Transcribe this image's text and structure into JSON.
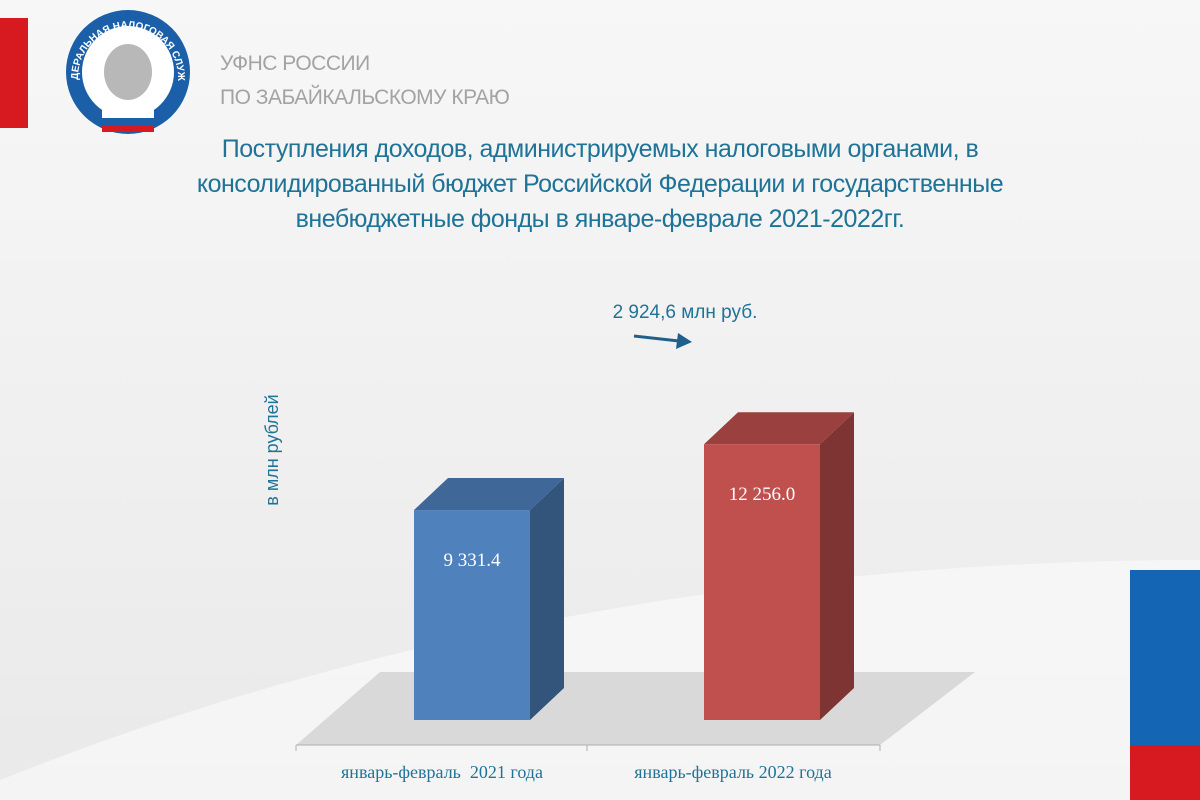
{
  "header": {
    "org_line1": "УФНС РОССИИ",
    "org_line2": "ПО ЗАБАЙКАЛЬСКОМУ КРАЮ",
    "logo_text": "ФЕДЕРАЛЬНАЯ НАЛОГОВАЯ СЛУЖБА"
  },
  "chart_data": {
    "type": "bar3d",
    "title": "Поступления доходов, администрируемых налоговыми органами, в консолидированный бюджет Российской Федерации и государственные внебюджетные фонды  в январе-феврале 2021-2022гг.",
    "annotation": "2 924,6 млн руб.",
    "y_label": "в млн рублей",
    "categories": [
      "январь-февраль  2021 года",
      "январь-февраль 2022 года"
    ],
    "values": [
      9331.4,
      12256.0
    ],
    "value_labels": [
      "9 331.4",
      "12 256.0"
    ],
    "colors": [
      "#4f81bd",
      "#c0504d"
    ],
    "ylim": [
      0,
      14000
    ]
  }
}
